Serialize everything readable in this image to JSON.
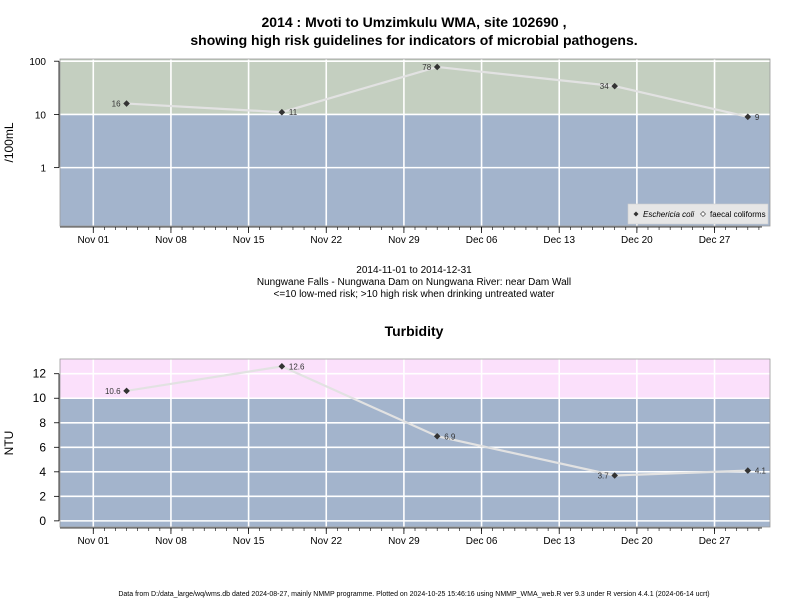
{
  "page_title_line1": "2014 : Mvoti to Umzimkulu WMA, site 102690 ,",
  "page_title_line2": "showing high risk guidelines for indicators of microbial pathogens.",
  "subtitle_lines": [
    "2014-11-01 to 2014-12-31",
    "Nungwane Falls - Nungwana Dam on Nungwana River: near Dam Wall",
    "<=10 low-med risk; >10 high risk when drinking untreated water"
  ],
  "footer": "Data from D:/data_large/wq/wms.db dated 2024-08-27, mainly NMMP programme. Plotted on 2024-10-25 15:46:16 using NMMP_WMA_web.R ver 9.3 under R version 4.4.1 (2024-06-14 ucrt)",
  "colors": {
    "low_band": "#a3b4cc",
    "high_band_micro": "#c4cfc0",
    "high_band_turb": "#fbe0fb",
    "line": "#e2e2e2",
    "grid": "#ffffff"
  },
  "chart_data": [
    {
      "type": "line",
      "title": "",
      "ylabel": "/100mL",
      "yscale": "log",
      "ylim": [
        0.08,
        110
      ],
      "yticks": [
        1,
        10,
        100
      ],
      "ytick_labels": [
        "1",
        "10",
        "100"
      ],
      "xlim": [
        "2014-10-29",
        "2015-01-01"
      ],
      "xticks": [
        "2014-11-01",
        "2014-11-08",
        "2014-11-15",
        "2014-11-22",
        "2014-11-29",
        "2014-12-06",
        "2014-12-13",
        "2014-12-20",
        "2014-12-27"
      ],
      "xtick_labels": [
        "Nov 01",
        "Nov 08",
        "Nov 15",
        "Nov 22",
        "Nov 29",
        "Dec 06",
        "Dec 13",
        "Dec 20",
        "Dec 27"
      ],
      "threshold": 10,
      "series": [
        {
          "name": "Eschericia coli",
          "x": [
            "2014-11-04",
            "2014-11-18",
            "2014-12-02",
            "2014-12-18",
            "2014-12-30"
          ],
          "y": [
            16,
            11,
            78,
            34,
            9
          ],
          "labels": [
            "16",
            "11",
            "78",
            "34",
            "9"
          ]
        }
      ],
      "legend": {
        "position": "bottom-right",
        "entries": [
          "Eschericia coli",
          "faecal coliforms"
        ]
      }
    },
    {
      "type": "line",
      "title": "Turbidity",
      "ylabel": "NTU",
      "yscale": "linear",
      "ylim": [
        -0.5,
        13.2
      ],
      "yticks": [
        0,
        2,
        4,
        6,
        8,
        10,
        12
      ],
      "ytick_labels": [
        "0",
        "2",
        "4",
        "6",
        "8",
        "10",
        "12"
      ],
      "xlim": [
        "2014-10-29",
        "2015-01-01"
      ],
      "xticks": [
        "2014-11-01",
        "2014-11-08",
        "2014-11-15",
        "2014-11-22",
        "2014-11-29",
        "2014-12-06",
        "2014-12-13",
        "2014-12-20",
        "2014-12-27"
      ],
      "xtick_labels": [
        "Nov 01",
        "Nov 08",
        "Nov 15",
        "Nov 22",
        "Nov 29",
        "Dec 06",
        "Dec 13",
        "Dec 20",
        "Dec 27"
      ],
      "threshold": 10,
      "series": [
        {
          "name": "",
          "x": [
            "2014-11-04",
            "2014-11-18",
            "2014-12-02",
            "2014-12-18",
            "2014-12-30"
          ],
          "y": [
            10.6,
            12.6,
            6.9,
            3.7,
            4.1
          ],
          "labels": [
            "10.6",
            "12.6",
            "6.9",
            "3.7",
            "4.1"
          ]
        }
      ]
    }
  ]
}
